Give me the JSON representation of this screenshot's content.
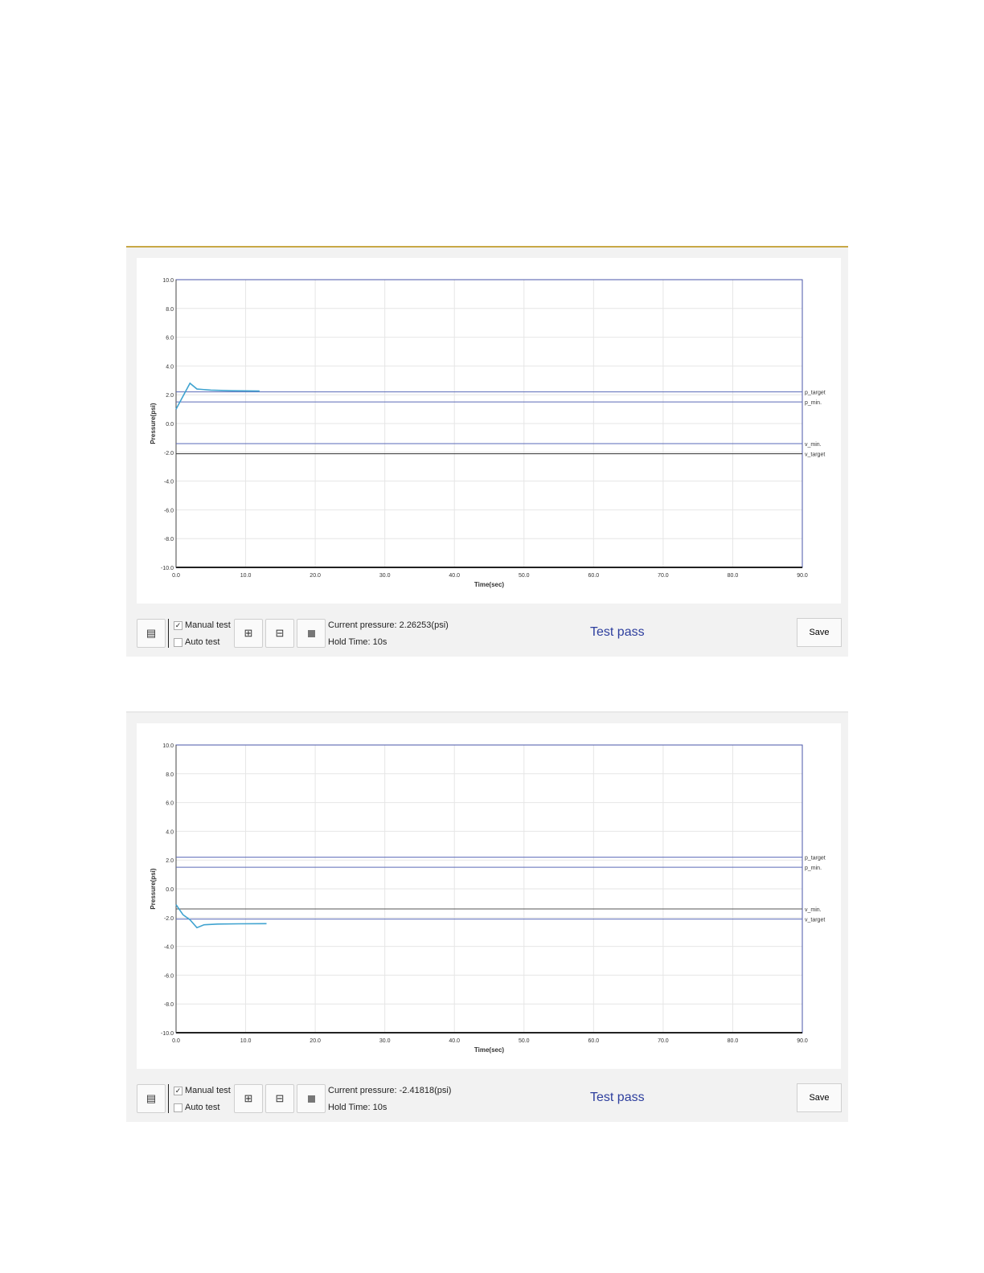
{
  "panels": [
    {
      "toolbar": {
        "manual_label": "Manual test",
        "manual_checked": true,
        "auto_label": "Auto test",
        "auto_checked": false,
        "pressure": "Current pressure: 2.26253(psi)",
        "hold": "Hold Time: 10s",
        "status": "Test pass",
        "save": "Save"
      },
      "chart_data": {
        "type": "line",
        "xlabel": "Time(sec)",
        "ylabel": "Pressure(psi)",
        "xlim": [
          0,
          90
        ],
        "ylim": [
          -10,
          10
        ],
        "xticks": [
          "0.0",
          "10.0",
          "20.0",
          "30.0",
          "40.0",
          "50.0",
          "60.0",
          "70.0",
          "80.0",
          "90.0"
        ],
        "yticks": [
          "10.0",
          "8.0",
          "6.0",
          "4.0",
          "2.0",
          "0.0",
          "-2.0",
          "-4.0",
          "-6.0",
          "-8.0",
          "-10.0"
        ],
        "grid": true,
        "refs": [
          {
            "name": "p_target",
            "y": 2.2,
            "color": "#5a6ab8"
          },
          {
            "name": "p_min.",
            "y": 1.5,
            "color": "#5a6ab8"
          },
          {
            "name": "v_min.",
            "y": -1.4,
            "color": "#5a6ab8"
          },
          {
            "name": "v_target",
            "y": -2.1,
            "color": "#333333"
          }
        ],
        "series": [
          {
            "color": "#3fa3d0",
            "x": [
              0,
              2,
              3,
              5,
              8,
              12
            ],
            "y": [
              1.0,
              2.8,
              2.4,
              2.32,
              2.28,
              2.26
            ]
          }
        ]
      }
    },
    {
      "toolbar": {
        "manual_label": "Manual test",
        "manual_checked": true,
        "auto_label": "Auto test",
        "auto_checked": false,
        "pressure": "Current pressure: -2.41818(psi)",
        "hold": "Hold Time: 10s",
        "status": "Test pass",
        "save": "Save"
      },
      "chart_data": {
        "type": "line",
        "xlabel": "Time(sec)",
        "ylabel": "Pressure(psi)",
        "xlim": [
          0,
          90
        ],
        "ylim": [
          -10,
          10
        ],
        "xticks": [
          "0.0",
          "10.0",
          "20.0",
          "30.0",
          "40.0",
          "50.0",
          "60.0",
          "70.0",
          "80.0",
          "90.0"
        ],
        "yticks": [
          "10.0",
          "8.0",
          "6.0",
          "4.0",
          "2.0",
          "0.0",
          "-2.0",
          "-4.0",
          "-6.0",
          "-8.0",
          "-10.0"
        ],
        "grid": true,
        "refs": [
          {
            "name": "p_target",
            "y": 2.2,
            "color": "#5a6ab8"
          },
          {
            "name": "p_min.",
            "y": 1.5,
            "color": "#5a6ab8"
          },
          {
            "name": "v_min.",
            "y": -1.4,
            "color": "#555555"
          },
          {
            "name": "v_target",
            "y": -2.1,
            "color": "#5a6ab8"
          }
        ],
        "series": [
          {
            "color": "#3fa3d0",
            "x": [
              0,
              1,
              2,
              3,
              4,
              6,
              9,
              13
            ],
            "y": [
              -1.1,
              -1.8,
              -2.15,
              -2.7,
              -2.5,
              -2.45,
              -2.43,
              -2.42
            ]
          }
        ]
      }
    }
  ]
}
